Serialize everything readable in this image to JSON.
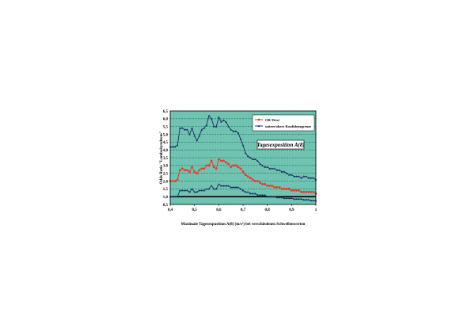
{
  "chart_data": {
    "type": "line",
    "title": "",
    "xlabel": "Maximale Tagesexposition A(8) (m/s²) bei verschiedenen Schwellenwerten",
    "ylabel": "Odds Ratio \"Lumbalsyndrom\"",
    "xlim": [
      0.4,
      1.0
    ],
    "ylim": [
      0.5,
      6.5
    ],
    "grid": true,
    "grid_axis": "y",
    "legend_position": "top-right",
    "annotation": "Tagesexposition A(8)",
    "x_ticks": [
      "0,4",
      "0,5",
      "0,6",
      "0,7",
      "0,8",
      "0,9",
      "1"
    ],
    "y_ticks": [
      "0,5",
      "1,0",
      "1,5",
      "2,0",
      "2,5",
      "3,0",
      "3,5",
      "4,0",
      "4,5",
      "5,0",
      "5,5",
      "6,0",
      "6,5"
    ],
    "reference_line": 1.0,
    "colors": {
      "plot_background": "#6fc3b0",
      "or_series": "#ea3b2c",
      "ci_series": "#1c2f66",
      "reference_line": "#000000"
    },
    "series": [
      {
        "name": "OR-Wert",
        "color": "#ea3b2c",
        "marker": "circle",
        "x": [
          0.4,
          0.41,
          0.42,
          0.43,
          0.44,
          0.45,
          0.46,
          0.47,
          0.48,
          0.49,
          0.5,
          0.51,
          0.52,
          0.53,
          0.54,
          0.55,
          0.56,
          0.57,
          0.58,
          0.59,
          0.6,
          0.61,
          0.62,
          0.63,
          0.64,
          0.65,
          0.66,
          0.67,
          0.68,
          0.69,
          0.7,
          0.71,
          0.72,
          0.73,
          0.74,
          0.75,
          0.76,
          0.77,
          0.78,
          0.79,
          0.8,
          0.81,
          0.82,
          0.83,
          0.84,
          0.85,
          0.86,
          0.87,
          0.88,
          0.89,
          0.9,
          0.91,
          0.92,
          0.93,
          0.94,
          0.95,
          0.96,
          0.97,
          0.98,
          0.99,
          1.0
        ],
        "y": [
          2.0,
          2.0,
          2.0,
          2.1,
          2.7,
          2.8,
          2.7,
          2.7,
          2.6,
          2.9,
          2.6,
          2.5,
          2.7,
          2.8,
          2.8,
          3.0,
          3.0,
          3.3,
          2.9,
          2.8,
          3.4,
          3.3,
          3.3,
          3.2,
          3.1,
          2.9,
          3.0,
          3.0,
          2.9,
          2.8,
          2.6,
          2.4,
          2.3,
          2.2,
          2.1,
          2.0,
          2.0,
          1.9,
          1.8,
          1.8,
          1.7,
          1.7,
          1.7,
          1.6,
          1.6,
          1.6,
          1.5,
          1.5,
          1.5,
          1.5,
          1.4,
          1.4,
          1.4,
          1.4,
          1.3,
          1.3,
          1.3,
          1.3,
          1.3,
          1.3,
          1.2
        ]
      },
      {
        "name": "untere/obere Konfidenzgrenze",
        "color": "#1c2f66",
        "marker": "triangle",
        "x": [
          0.4,
          0.41,
          0.42,
          0.43,
          0.44,
          0.45,
          0.46,
          0.47,
          0.48,
          0.49,
          0.5,
          0.51,
          0.52,
          0.53,
          0.54,
          0.55,
          0.56,
          0.57,
          0.58,
          0.59,
          0.6,
          0.61,
          0.62,
          0.63,
          0.64,
          0.65,
          0.66,
          0.67,
          0.68,
          0.69,
          0.7,
          0.71,
          0.72,
          0.73,
          0.74,
          0.75,
          0.76,
          0.77,
          0.78,
          0.79,
          0.8,
          0.81,
          0.82,
          0.83,
          0.84,
          0.85,
          0.86,
          0.87,
          0.88,
          0.89,
          0.9,
          0.91,
          0.92,
          0.93,
          0.94,
          0.95,
          0.96,
          0.97,
          0.98,
          0.99,
          1.0
        ],
        "y": [
          4.2,
          4.2,
          4.2,
          4.3,
          5.4,
          5.4,
          5.3,
          5.3,
          5.0,
          5.4,
          4.9,
          4.6,
          4.9,
          5.3,
          5.4,
          5.6,
          6.2,
          6.0,
          5.5,
          5.5,
          6.1,
          5.8,
          5.9,
          5.8,
          5.5,
          5.3,
          5.2,
          5.2,
          5.1,
          4.7,
          4.3,
          3.8,
          3.6,
          3.5,
          3.4,
          3.4,
          3.3,
          3.1,
          3.0,
          2.9,
          2.9,
          2.8,
          2.8,
          2.8,
          2.7,
          2.7,
          2.6,
          2.6,
          2.5,
          2.4,
          2.4,
          2.3,
          2.3,
          2.3,
          2.2,
          2.3,
          2.3,
          2.2,
          2.2,
          2.2,
          2.1
        ],
        "y_lower": [
          1.0,
          1.0,
          1.0,
          1.0,
          1.4,
          1.4,
          1.4,
          1.4,
          1.3,
          1.5,
          1.3,
          1.3,
          1.4,
          1.4,
          1.4,
          1.5,
          1.5,
          1.7,
          1.5,
          1.5,
          1.8,
          1.7,
          1.7,
          1.7,
          1.7,
          1.6,
          1.6,
          1.6,
          1.6,
          1.5,
          1.4,
          1.3,
          1.3,
          1.2,
          1.2,
          1.2,
          1.1,
          1.1,
          1.1,
          1.1,
          1.0,
          1.0,
          1.0,
          1.0,
          0.95,
          0.95,
          0.95,
          0.9,
          0.9,
          0.9,
          0.9,
          0.85,
          0.85,
          0.85,
          0.85,
          0.8,
          0.8,
          0.8,
          0.75,
          0.75,
          0.75
        ]
      }
    ]
  }
}
